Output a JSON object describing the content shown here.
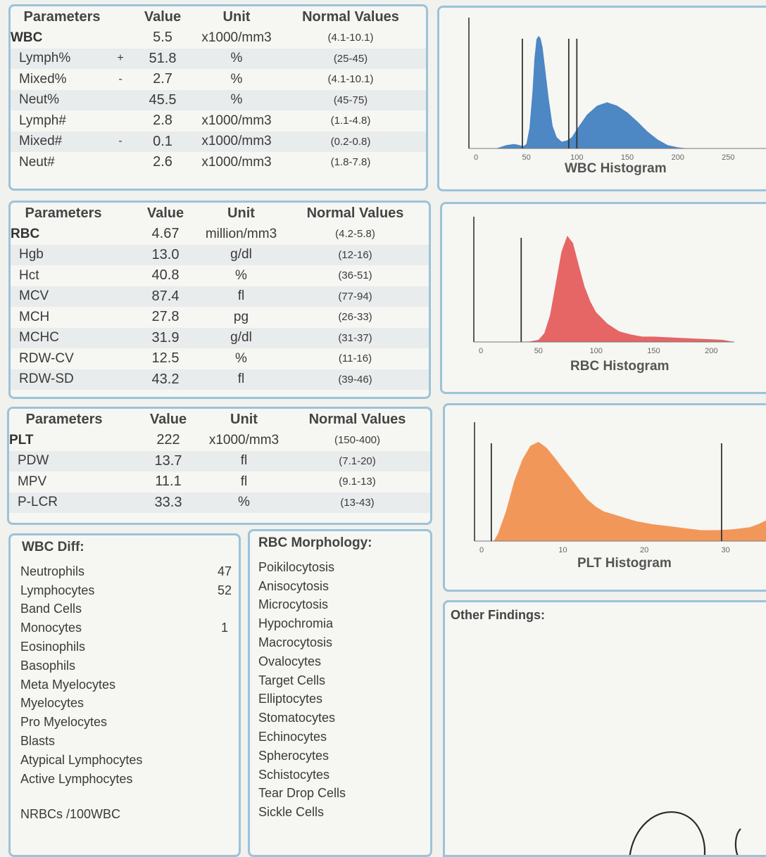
{
  "wbc_table": {
    "headers": [
      "Parameters",
      "Value",
      "Unit",
      "Normal Values"
    ],
    "rows": [
      {
        "name": "WBC",
        "flag": "",
        "value": "5.5",
        "unit": "x1000/mm3",
        "normal": "(4.1-10.1)",
        "main": true
      },
      {
        "name": "Lymph%",
        "flag": "+",
        "value": "51.8",
        "unit": "%",
        "normal": "(25-45)",
        "main": false
      },
      {
        "name": "Mixed%",
        "flag": "-",
        "value": "2.7",
        "unit": "%",
        "normal": "(4.1-10.1)",
        "main": false
      },
      {
        "name": "Neut%",
        "flag": "",
        "value": "45.5",
        "unit": "%",
        "normal": "(45-75)",
        "main": false
      },
      {
        "name": "Lymph#",
        "flag": "",
        "value": "2.8",
        "unit": "x1000/mm3",
        "normal": "(1.1-4.8)",
        "main": false
      },
      {
        "name": "Mixed#",
        "flag": "-",
        "value": "0.1",
        "unit": "x1000/mm3",
        "normal": "(0.2-0.8)",
        "main": false
      },
      {
        "name": "Neut#",
        "flag": "",
        "value": "2.6",
        "unit": "x1000/mm3",
        "normal": "(1.8-7.8)",
        "main": false
      }
    ]
  },
  "rbc_table": {
    "headers": [
      "Parameters",
      "Value",
      "Unit",
      "Normal Values"
    ],
    "rows": [
      {
        "name": "RBC",
        "flag": "",
        "value": "4.67",
        "unit": "million/mm3",
        "normal": "(4.2-5.8)",
        "main": true
      },
      {
        "name": "Hgb",
        "flag": "",
        "value": "13.0",
        "unit": "g/dl",
        "normal": "(12-16)",
        "main": false
      },
      {
        "name": "Hct",
        "flag": "",
        "value": "40.8",
        "unit": "%",
        "normal": "(36-51)",
        "main": false
      },
      {
        "name": "MCV",
        "flag": "",
        "value": "87.4",
        "unit": "fl",
        "normal": "(77-94)",
        "main": false
      },
      {
        "name": "MCH",
        "flag": "",
        "value": "27.8",
        "unit": "pg",
        "normal": "(26-33)",
        "main": false
      },
      {
        "name": "MCHC",
        "flag": "",
        "value": "31.9",
        "unit": "g/dl",
        "normal": "(31-37)",
        "main": false
      },
      {
        "name": "RDW-CV",
        "flag": "",
        "value": "12.5",
        "unit": "%",
        "normal": "(11-16)",
        "main": false
      },
      {
        "name": "RDW-SD",
        "flag": "",
        "value": "43.2",
        "unit": "fl",
        "normal": "(39-46)",
        "main": false
      }
    ]
  },
  "plt_table": {
    "headers": [
      "Parameters",
      "Value",
      "Unit",
      "Normal Values"
    ],
    "rows": [
      {
        "name": "PLT",
        "flag": "",
        "value": "222",
        "unit": "x1000/mm3",
        "normal": "(150-400)",
        "main": true
      },
      {
        "name": "PDW",
        "flag": "",
        "value": "13.7",
        "unit": "fl",
        "normal": "(7.1-20)",
        "main": false
      },
      {
        "name": "MPV",
        "flag": "",
        "value": "11.1",
        "unit": "fl",
        "normal": "(9.1-13)",
        "main": false
      },
      {
        "name": "P-LCR",
        "flag": "",
        "value": "33.3",
        "unit": "%",
        "normal": "(13-43)",
        "main": false
      }
    ]
  },
  "wbc_diff": {
    "title": "WBC Diff:",
    "items": [
      {
        "label": "Neutrophils",
        "count": "47"
      },
      {
        "label": "Lymphocytes",
        "count": "52"
      },
      {
        "label": "Band Cells",
        "count": ""
      },
      {
        "label": "Monocytes",
        "count": "1"
      },
      {
        "label": "Eosinophils",
        "count": ""
      },
      {
        "label": "Basophils",
        "count": ""
      },
      {
        "label": "Meta Myelocytes",
        "count": ""
      },
      {
        "label": "Myelocytes",
        "count": ""
      },
      {
        "label": "Pro Myelocytes",
        "count": ""
      },
      {
        "label": "Blasts",
        "count": ""
      },
      {
        "label": "Atypical Lymphocytes",
        "count": ""
      },
      {
        "label": "Active Lymphocytes",
        "count": ""
      }
    ],
    "nrbc_label": "NRBCs /100WBC"
  },
  "rbc_morphology": {
    "title": "RBC Morphology:",
    "items": [
      "Poikilocytosis",
      "Anisocytosis",
      "Microcytosis",
      "Hypochromia",
      "Macrocytosis",
      "Ovalocytes",
      "Target Cells",
      "Elliptocytes",
      "Stomatocytes",
      "Echinocytes",
      "Spherocytes",
      "Schistocytes",
      "Tear Drop Cells",
      "Sickle Cells"
    ]
  },
  "other_findings": {
    "title": "Other Findings:"
  },
  "chart_data": [
    {
      "type": "area",
      "title": "WBC Histogram",
      "color": "#4d87c4",
      "xlim": [
        0,
        300
      ],
      "ylim": [
        0,
        1
      ],
      "xticks": [
        "0",
        "50",
        "100",
        "150",
        "200",
        "250"
      ],
      "x": [
        0,
        20,
        30,
        38,
        43,
        47,
        50,
        53,
        56,
        58,
        60,
        62,
        64,
        66,
        68,
        72,
        76,
        80,
        85,
        90,
        95,
        100,
        110,
        120,
        130,
        140,
        150,
        160,
        170,
        180,
        190,
        200,
        210,
        230,
        260,
        300
      ],
      "values": [
        0,
        0,
        0.03,
        0.04,
        0.03,
        0.02,
        0.04,
        0.18,
        0.5,
        0.8,
        0.97,
        1.0,
        0.98,
        0.9,
        0.75,
        0.45,
        0.2,
        0.1,
        0.06,
        0.07,
        0.1,
        0.17,
        0.3,
        0.38,
        0.41,
        0.38,
        0.32,
        0.24,
        0.15,
        0.08,
        0.03,
        0.01,
        0,
        0,
        0,
        0
      ],
      "markers": [
        46,
        92,
        100
      ]
    },
    {
      "type": "area",
      "title": "RBC Histogram",
      "color": "#e66565",
      "xlim": [
        0,
        220
      ],
      "ylim": [
        0,
        1
      ],
      "xticks": [
        "0",
        "50",
        "100",
        "150",
        "200"
      ],
      "x": [
        0,
        30,
        40,
        50,
        55,
        60,
        65,
        70,
        75,
        80,
        85,
        90,
        95,
        100,
        110,
        120,
        130,
        140,
        150,
        170,
        190,
        210,
        220
      ],
      "values": [
        0,
        0,
        0,
        0.02,
        0.08,
        0.25,
        0.55,
        0.85,
        1.0,
        0.93,
        0.72,
        0.52,
        0.38,
        0.28,
        0.17,
        0.1,
        0.07,
        0.05,
        0.05,
        0.04,
        0.03,
        0.02,
        0
      ],
      "markers": [
        35
      ]
    },
    {
      "type": "area",
      "title": "PLT Histogram",
      "color": "#f2975a",
      "xlim": [
        0,
        36
      ],
      "ylim": [
        0,
        1
      ],
      "xticks": [
        "0",
        "10",
        "20",
        "30"
      ],
      "x": [
        0,
        1.5,
        2,
        3,
        4,
        5,
        6,
        7,
        8,
        9,
        10,
        11,
        12,
        13,
        14,
        15,
        17,
        19,
        21,
        23,
        25,
        27,
        29,
        31,
        33,
        34,
        35,
        36
      ],
      "values": [
        0,
        0,
        0.07,
        0.3,
        0.6,
        0.82,
        0.96,
        1.0,
        0.94,
        0.84,
        0.73,
        0.63,
        0.52,
        0.42,
        0.35,
        0.3,
        0.25,
        0.2,
        0.17,
        0.15,
        0.13,
        0.11,
        0.11,
        0.12,
        0.14,
        0.17,
        0.21,
        0.25
      ],
      "markers": [
        1.2,
        29.5
      ]
    }
  ]
}
